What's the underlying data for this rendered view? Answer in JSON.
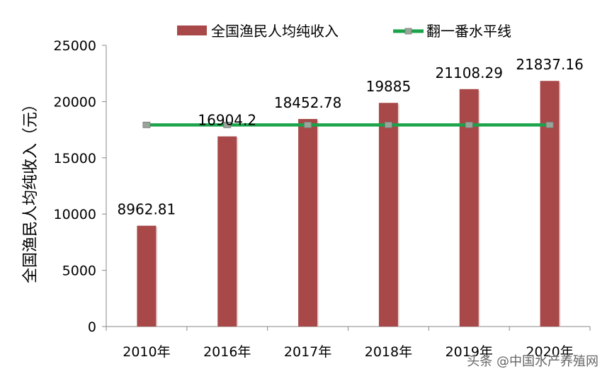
{
  "chart_data": {
    "type": "bar",
    "categories": [
      "2010年",
      "2016年",
      "2017年",
      "2018年",
      "2019年",
      "2020年"
    ],
    "series": [
      {
        "name": "全国渔民人均纯收入",
        "type": "bar",
        "color": "#a84848",
        "values": [
          8962.81,
          16904.2,
          18452.78,
          19885,
          21108.29,
          21837.16
        ],
        "labels": [
          "8962.81",
          "16904.2",
          "18452.78",
          "19885",
          "21108.29",
          "21837.16"
        ]
      },
      {
        "name": "翻一番水平线",
        "type": "line",
        "color": "#1aa34a",
        "values": [
          17925.62,
          17925.62,
          17925.62,
          17925.62,
          17925.62,
          17925.62
        ]
      }
    ],
    "ylabel": "全国渔民人均纯收入（元）",
    "xlabel": "",
    "ylim": [
      0,
      25000
    ],
    "yticks": [
      0,
      5000,
      10000,
      15000,
      20000,
      25000
    ],
    "legend_position": "top",
    "grid": false
  },
  "watermark": "头条 @中国水产养殖网"
}
